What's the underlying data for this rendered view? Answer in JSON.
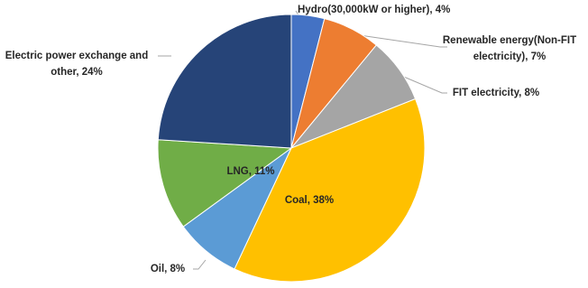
{
  "chart_data": {
    "type": "pie",
    "labels": [
      [
        "Hydro(30,000kW or higher), 4%"
      ],
      [
        "Renewable energy(Non-FIT",
        "electricity), 7%"
      ],
      [
        "FIT electricity, 8%"
      ],
      [
        "Coal, 38%"
      ],
      [
        "Oil, 8%"
      ],
      [
        "LNG, 11%"
      ],
      [
        "Electric power exchange and",
        "other, 24%"
      ]
    ],
    "values": [
      4,
      7,
      8,
      38,
      8,
      11,
      24
    ],
    "colors": [
      "#4472c4",
      "#ed7d31",
      "#a5a5a5",
      "#ffc000",
      "#5b9bd5",
      "#70ad47",
      "#264478"
    ]
  }
}
